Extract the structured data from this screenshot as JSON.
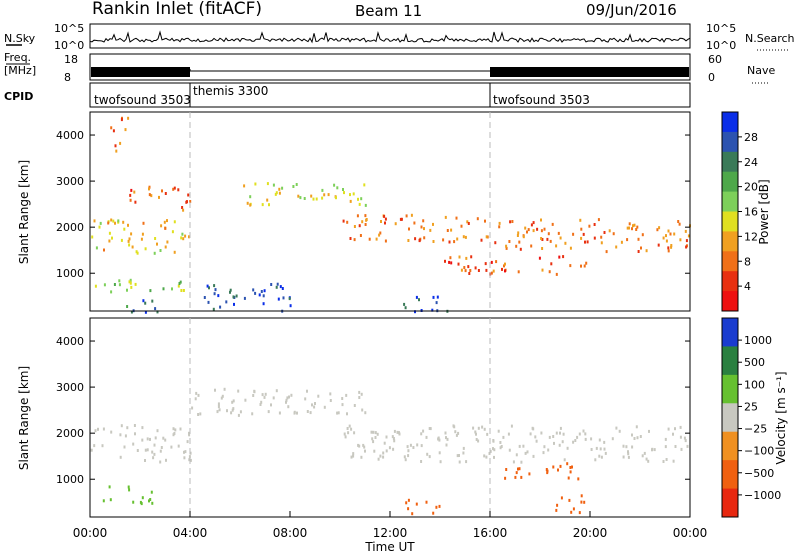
{
  "header": {
    "title": "Rankin Inlet (fitACF)",
    "beam": "Beam 11",
    "date": "09/Jun/2016"
  },
  "nsky_panel": {
    "left_label": "N.Sky",
    "right_label": "N.Search",
    "y_ticks": [
      "10^5",
      "10^0"
    ]
  },
  "freq_panel": {
    "left_label_1": "Freq.",
    "left_label_2": "[MHz]",
    "left_ticks": [
      "18",
      "8"
    ],
    "right_label": "Nave",
    "right_ticks": [
      "60",
      "0"
    ]
  },
  "cpid_panel": {
    "label": "CPID",
    "segments": [
      {
        "name": "twofsound 3503",
        "start": 0,
        "end": 4
      },
      {
        "name": "themis 3300",
        "start": 4,
        "end": 16
      },
      {
        "name": "twofsound 3503",
        "start": 16,
        "end": 24
      }
    ]
  },
  "chart_data": [
    {
      "type": "heatmap",
      "ylabel": "Slant Range [km]",
      "yticks": [
        "4000",
        "3000",
        "2000",
        "1000"
      ],
      "ylim": [
        180,
        4500
      ],
      "xlim": [
        0,
        24
      ],
      "colorbar_label": "Power [dB]",
      "colorbar_ticks": [
        "28",
        "24",
        "20",
        "16",
        "12",
        "8",
        "4"
      ],
      "colorbar_colors": [
        "#0a2ee8",
        "#2c53b0",
        "#3a7a58",
        "#4ea84a",
        "#7dd05a",
        "#e0e020",
        "#f0a020",
        "#f07018",
        "#e83010",
        "#ee1010"
      ],
      "regions": [
        {
          "t0": 0.0,
          "t1": 4.0,
          "r0": 1450,
          "r1": 2200,
          "value": 14
        },
        {
          "t0": 0.0,
          "t1": 4.0,
          "r0": 600,
          "r1": 900,
          "value": 18
        },
        {
          "t0": 1.0,
          "t1": 3.0,
          "r0": 180,
          "r1": 450,
          "value": 26
        },
        {
          "t0": 0.8,
          "t1": 1.5,
          "r0": 3600,
          "r1": 4400,
          "value": 10
        },
        {
          "t0": 1.5,
          "t1": 4.0,
          "r0": 2400,
          "r1": 2900,
          "value": 8
        },
        {
          "t0": 4.5,
          "t1": 8.0,
          "r0": 180,
          "r1": 800,
          "value": 28
        },
        {
          "t0": 6.0,
          "t1": 11.0,
          "r0": 2500,
          "r1": 3000,
          "value": 16
        },
        {
          "t0": 10.0,
          "t1": 16.0,
          "r0": 1700,
          "r1": 2300,
          "value": 10
        },
        {
          "t0": 12.5,
          "t1": 14.5,
          "r0": 180,
          "r1": 550,
          "value": 28
        },
        {
          "t0": 16.0,
          "t1": 24.0,
          "r0": 1500,
          "r1": 2200,
          "value": 10
        },
        {
          "t0": 14.0,
          "t1": 20.0,
          "r0": 1000,
          "r1": 1400,
          "value": 8
        }
      ]
    },
    {
      "type": "heatmap",
      "xlabel": "Time UT",
      "xticks": [
        "00:00",
        "04:00",
        "08:00",
        "12:00",
        "16:00",
        "20:00",
        "00:00"
      ],
      "ylabel": "Slant Range [km]",
      "yticks": [
        "4000",
        "3000",
        "2000",
        "1000"
      ],
      "ylim": [
        180,
        4500
      ],
      "xlim": [
        0,
        24
      ],
      "colorbar_label": "Velocity [m s⁻¹]",
      "colorbar_ticks": [
        "1000",
        "500",
        "100",
        "25",
        "−25",
        "−100",
        "−500",
        "−1000"
      ],
      "colorbar_colors": [
        "#1a3cd0",
        "#2a8040",
        "#66c030",
        "#c8c8c0",
        "#f09020",
        "#f06010",
        "#e82810"
      ],
      "regions": [
        {
          "t0": 0.0,
          "t1": 4.0,
          "r0": 1400,
          "r1": 2200,
          "value": 0
        },
        {
          "t0": 0.5,
          "t1": 2.5,
          "r0": 500,
          "r1": 900,
          "value": 80
        },
        {
          "t0": 4.0,
          "t1": 11.0,
          "r0": 2400,
          "r1": 3000,
          "value": 0
        },
        {
          "t0": 10.0,
          "t1": 24.0,
          "r0": 1400,
          "r1": 2200,
          "value": 0
        },
        {
          "t0": 12.5,
          "t1": 14.0,
          "r0": 250,
          "r1": 600,
          "value": -200
        },
        {
          "t0": 16.5,
          "t1": 19.5,
          "r0": 1000,
          "r1": 1400,
          "value": -200
        },
        {
          "t0": 18.5,
          "t1": 20.0,
          "r0": 300,
          "r1": 700,
          "value": -200
        }
      ]
    }
  ]
}
